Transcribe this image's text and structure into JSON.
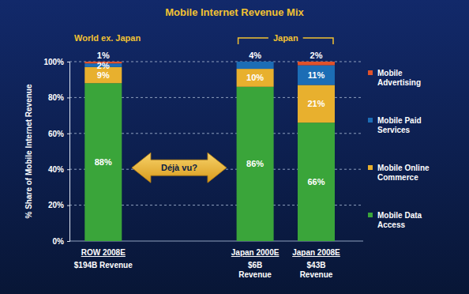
{
  "chart_data": {
    "type": "bar",
    "title": "Mobile Internet Revenue Mix",
    "y_label": "% Share of Mobile Internet Revenue",
    "group_labels": [
      "World ex. Japan",
      "Japan"
    ],
    "annotation": "Déjà vu?",
    "categories": [
      "ROW 2008E",
      "Japan 2000E",
      "Japan 2008E"
    ],
    "category_sublabels": [
      [
        "$194B Revenue"
      ],
      [
        "$6B",
        "Revenue"
      ],
      [
        "$43B",
        "Revenue"
      ]
    ],
    "series": [
      {
        "name": "Mobile Data Access",
        "color": "#3aa53a",
        "values": [
          88,
          86,
          66
        ],
        "value_labels": [
          "88%",
          "86%",
          "66%"
        ]
      },
      {
        "name": "Mobile Online Commerce",
        "color": "#e8b02e",
        "values": [
          9,
          10,
          21
        ],
        "value_labels": [
          "9%",
          "10%",
          "21%"
        ]
      },
      {
        "name": "Mobile Paid Services",
        "color": "#1c6db5",
        "values": [
          2,
          4,
          11
        ],
        "value_labels": [
          "2%",
          "4%",
          "11%"
        ]
      },
      {
        "name": "Mobile Advertising",
        "color": "#e0522a",
        "values": [
          1,
          0,
          2
        ],
        "value_labels": [
          "1%",
          null,
          "2%"
        ]
      }
    ],
    "ylim": [
      0,
      100
    ],
    "yticks": [
      {
        "value": 0,
        "label": "0%"
      },
      {
        "value": 20,
        "label": "20%"
      },
      {
        "value": 40,
        "label": "40%"
      },
      {
        "value": 60,
        "label": "60%"
      },
      {
        "value": 80,
        "label": "80%"
      },
      {
        "value": 100,
        "label": "100%"
      }
    ],
    "stacked": true,
    "grid": true,
    "data_labels": true,
    "legend": "right"
  }
}
